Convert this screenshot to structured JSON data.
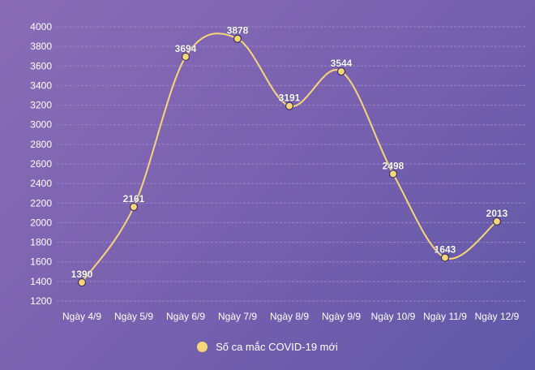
{
  "chart_data": {
    "type": "line",
    "title": "",
    "xlabel": "",
    "ylabel": "",
    "categories": [
      "Ngày 4/9",
      "Ngày 5/9",
      "Ngày 6/9",
      "Ngày 7/9",
      "Ngày 8/9",
      "Ngày 9/9",
      "Ngày 10/9",
      "Ngày 11/9",
      "Ngày 12/9"
    ],
    "series": [
      {
        "name": "Số ca mắc COVID-19 mới",
        "values": [
          1390,
          2161,
          3694,
          3878,
          3191,
          3544,
          2498,
          1643,
          2013
        ]
      }
    ],
    "ylim": [
      1200,
      4000
    ],
    "yticks": [
      1200,
      1400,
      1600,
      1800,
      2000,
      2200,
      2400,
      2600,
      2800,
      3000,
      3200,
      3400,
      3600,
      3800,
      4000
    ],
    "grid": true,
    "legend_position": "bottom",
    "colors": {
      "line": "#f5d77a",
      "marker": "#f5d77a",
      "grid": "#9a84c6",
      "text": "#ffffff"
    }
  },
  "legend": {
    "label": "Số ca mắc COVID-19 mới"
  }
}
